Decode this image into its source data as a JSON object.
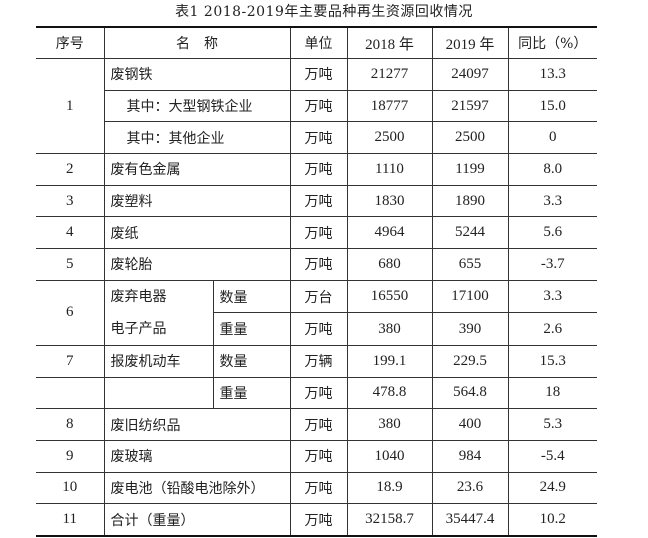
{
  "title": "表1  2018-2019年主要品种再生资源回收情况",
  "headers": [
    "序号",
    "名　称",
    "单位",
    "2018 年",
    "2019 年",
    "同比（%）"
  ],
  "rows": [
    {
      "seq": "1",
      "name": "废钢铁",
      "unit": "万吨",
      "y2018": "21277",
      "y2019": "24097",
      "yoy": "13.3"
    },
    {
      "name": "其中：大型钢铁企业",
      "unit": "万吨",
      "y2018": "18777",
      "y2019": "21597",
      "yoy": "15.0"
    },
    {
      "name": "其中：其他企业",
      "unit": "万吨",
      "y2018": "2500",
      "y2019": "2500",
      "yoy": "0"
    },
    {
      "seq": "2",
      "name": "废有色金属",
      "unit": "万吨",
      "y2018": "1110",
      "y2019": "1199",
      "yoy": "8.0"
    },
    {
      "seq": "3",
      "name": "废塑料",
      "unit": "万吨",
      "y2018": "1830",
      "y2019": "1890",
      "yoy": "3.3"
    },
    {
      "seq": "4",
      "name": "废纸",
      "unit": "万吨",
      "y2018": "4964",
      "y2019": "5244",
      "yoy": "5.6"
    },
    {
      "seq": "5",
      "name": "废轮胎",
      "unit": "万吨",
      "y2018": "680",
      "y2019": "655",
      "yoy": "-3.7"
    },
    {
      "seq": "6",
      "name_line1": "废弃电器",
      "name_line2": "电子产品",
      "sub": "数量",
      "unit": "万台",
      "y2018": "16550",
      "y2019": "17100",
      "yoy": "3.3"
    },
    {
      "sub": "重量",
      "unit": "万吨",
      "y2018": "380",
      "y2019": "390",
      "yoy": "2.6"
    },
    {
      "seq": "7",
      "name": "报废机动车",
      "sub": "数量",
      "unit": "万辆",
      "y2018": "199.1",
      "y2019": "229.5",
      "yoy": "15.3"
    },
    {
      "sub": "重量",
      "unit": "万吨",
      "y2018": "478.8",
      "y2019": "564.8",
      "yoy": "18"
    },
    {
      "seq": "8",
      "name": "废旧纺织品",
      "unit": "万吨",
      "y2018": "380",
      "y2019": "400",
      "yoy": "5.3"
    },
    {
      "seq": "9",
      "name": "废玻璃",
      "unit": "万吨",
      "y2018": "1040",
      "y2019": "984",
      "yoy": "-5.4"
    },
    {
      "seq": "10",
      "name": "废电池（铅酸电池除外）",
      "unit": "万吨",
      "y2018": "18.9",
      "y2019": "23.6",
      "yoy": "24.9"
    },
    {
      "seq": "11",
      "name": "合计（重量）",
      "unit": "万吨",
      "y2018": "32158.7",
      "y2019": "35447.4",
      "yoy": "10.2"
    }
  ]
}
